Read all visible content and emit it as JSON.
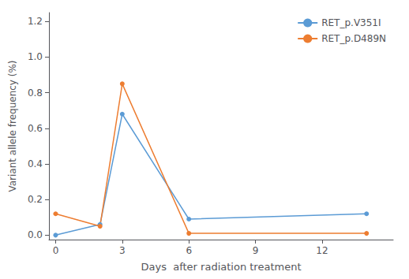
{
  "chart_data": {
    "type": "line",
    "xlabel": "Days  after radiation treatment",
    "ylabel": "Variant allele frequency (%)",
    "x": [
      0,
      2,
      3,
      6,
      14
    ],
    "series": [
      {
        "name": "RET_p.V351I",
        "color": "#5b9bd5",
        "values": [
          0.0,
          0.06,
          0.68,
          0.09,
          0.12
        ]
      },
      {
        "name": "RET_p.D489N",
        "color": "#ed7d31",
        "values": [
          0.12,
          0.05,
          0.85,
          0.01,
          0.01
        ]
      }
    ],
    "xlim": [
      -0.3,
      15.2
    ],
    "ylim": [
      -0.025,
      1.25
    ],
    "xticks": [
      0,
      3,
      6,
      9,
      12
    ],
    "yticks": [
      {
        "value": 0.0,
        "label": "0.0"
      },
      0.2,
      0.4,
      0.6,
      0.8,
      {
        "value": 1.0,
        "label": "1.0"
      },
      1.2
    ],
    "legend": "upper right",
    "marker": "circle",
    "grid": false
  }
}
